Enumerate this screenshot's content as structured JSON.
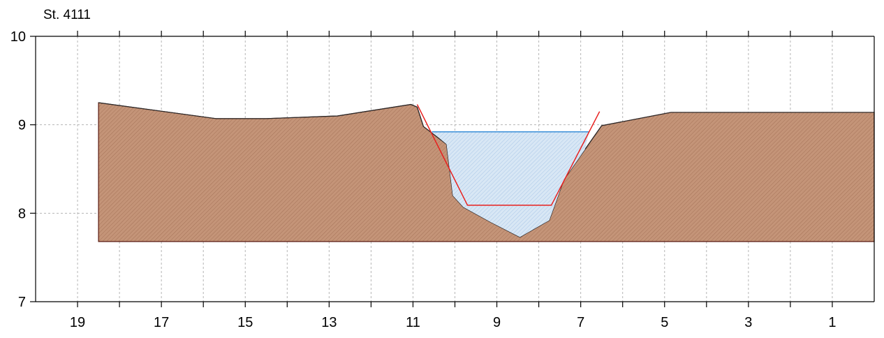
{
  "chart_data": {
    "type": "area",
    "title": "St. 4111",
    "xlabel": "",
    "ylabel": "",
    "x_reversed": true,
    "xlim": [
      20,
      0
    ],
    "ylim": [
      7,
      10
    ],
    "grid": true,
    "x_ticks": [
      19,
      17,
      15,
      13,
      11,
      9,
      7,
      5,
      3,
      1
    ],
    "y_ticks": [
      10,
      9,
      8,
      7
    ],
    "colors": {
      "terrain_fill": "#c49478",
      "terrain_edge": "#5a1a10",
      "water_fill": "#cfe0f1",
      "water_line": "#3a8fd8",
      "fit_line": "#e8201e",
      "grid": "#b5b5b5"
    },
    "series": [
      {
        "kind": "terrain_profile",
        "points": [
          [
            18.5,
            7.68
          ],
          [
            18.5,
            9.25
          ],
          [
            15.7,
            9.07
          ],
          [
            14.5,
            9.07
          ],
          [
            12.8,
            9.1
          ],
          [
            11.05,
            9.23
          ],
          [
            10.9,
            9.2
          ],
          [
            10.75,
            8.98
          ],
          [
            10.2,
            8.78
          ],
          [
            10.05,
            8.2
          ],
          [
            9.8,
            8.07
          ],
          [
            9.15,
            7.9
          ],
          [
            8.45,
            7.73
          ],
          [
            7.75,
            7.92
          ],
          [
            7.4,
            8.38
          ],
          [
            6.9,
            8.72
          ],
          [
            6.5,
            8.99
          ],
          [
            4.85,
            9.14
          ],
          [
            0,
            9.14
          ],
          [
            0,
            7.68
          ]
        ]
      },
      {
        "kind": "water_surface",
        "elevation": 8.92,
        "x_range": [
          10.55,
          6.8
        ]
      },
      {
        "kind": "trapezoid_fit",
        "points": [
          [
            10.9,
            9.23
          ],
          [
            9.7,
            8.09
          ],
          [
            7.7,
            8.09
          ],
          [
            6.55,
            9.15
          ]
        ]
      }
    ]
  }
}
